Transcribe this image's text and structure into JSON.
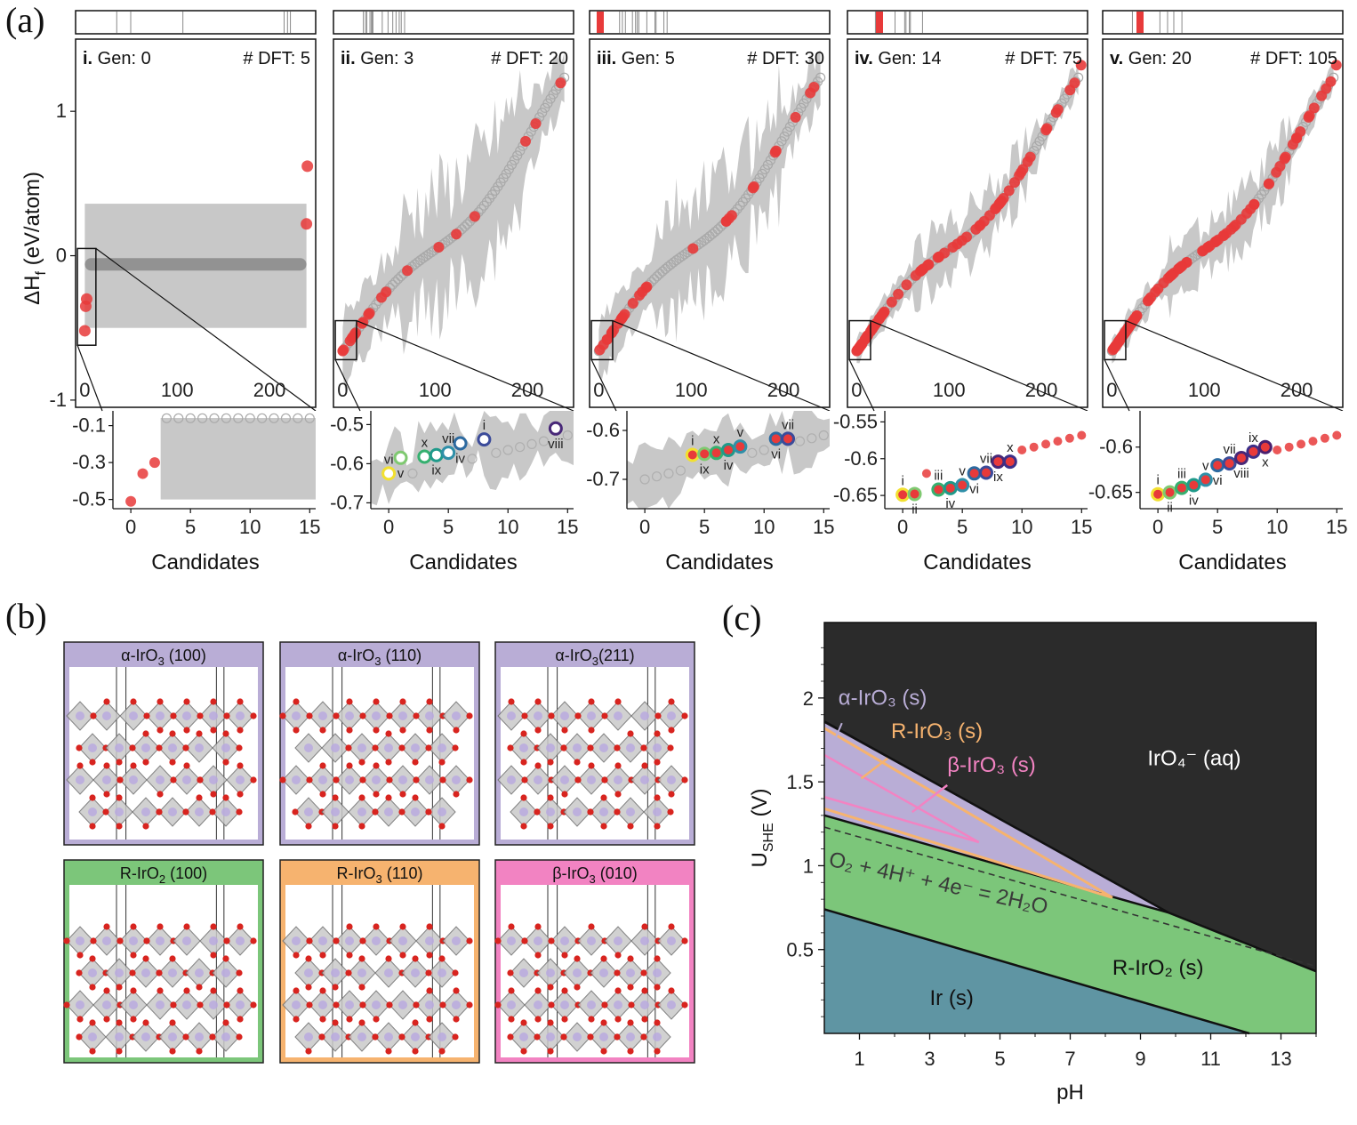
{
  "labels": {
    "a": "(a)",
    "b": "(b)",
    "c": "(c)"
  },
  "panel_a": {
    "y_axis_label": "ΔH",
    "y_axis_sub": "f",
    "y_axis_unit": " (eV/atom)",
    "x_axis_label": "Candidates",
    "main_yticks": [
      -1,
      0,
      1
    ],
    "main_xticks": [
      0,
      100,
      200
    ],
    "zoom_xticks": [
      0,
      5,
      10,
      15
    ],
    "highlight_color": "#e83a3a",
    "candidate_color": "#a9a9a9",
    "band_color": "#c8c8c8",
    "ring_colors": [
      "#f2e030",
      "#7fc971",
      "#35b06f",
      "#1f9a8a",
      "#2f8fa8",
      "#2c6aa0",
      "#3b4b9a",
      "#482878",
      "#3d2f88",
      "#4a1f6e"
    ],
    "subpanels": [
      {
        "roman": "i.",
        "gen": "Gen: 0",
        "dft": "# DFT: 5",
        "zoom_yticks": [
          -0.1,
          -0.3,
          -0.5
        ],
        "zoom_ylim": [
          -0.55,
          -0.02
        ]
      },
      {
        "roman": "ii.",
        "gen": "Gen: 3",
        "dft": "# DFT: 20",
        "zoom_yticks": [
          -0.5,
          -0.6,
          -0.7
        ],
        "zoom_ylim": [
          -0.715,
          -0.465
        ]
      },
      {
        "roman": "iii.",
        "gen": "Gen: 5",
        "dft": "# DFT: 30",
        "zoom_yticks": [
          -0.6,
          -0.7
        ],
        "zoom_ylim": [
          -0.76,
          -0.56
        ]
      },
      {
        "roman": "iv.",
        "gen": "Gen: 14",
        "dft": "# DFT: 75",
        "zoom_yticks": [
          -0.55,
          -0.6,
          -0.65
        ],
        "zoom_ylim": [
          -0.668,
          -0.535
        ]
      },
      {
        "roman": "v.",
        "gen": "Gen: 20",
        "dft": "# DFT: 105",
        "zoom_yticks": [
          -0.6,
          -0.65
        ],
        "zoom_ylim": [
          -0.668,
          -0.56
        ]
      }
    ],
    "zoom_markers": [
      [],
      [
        {
          "t": "vi",
          "x": 0,
          "y": -0.625
        },
        {
          "t": "v",
          "x": 1,
          "y": -0.585
        },
        {
          "t": "x",
          "x": 3,
          "y": -0.582
        },
        {
          "t": "ix",
          "x": 4,
          "y": -0.578
        },
        {
          "t": "vii",
          "x": 5,
          "y": -0.572
        },
        {
          "t": "iv",
          "x": 6,
          "y": -0.548
        },
        {
          "t": "i",
          "x": 8,
          "y": -0.538
        },
        {
          "t": "viii",
          "x": 14,
          "y": -0.51
        }
      ],
      [
        {
          "t": "i",
          "x": 4,
          "y": -0.65
        },
        {
          "t": "ix",
          "x": 5,
          "y": -0.648
        },
        {
          "t": "x",
          "x": 6,
          "y": -0.646
        },
        {
          "t": "iv",
          "x": 7,
          "y": -0.64
        },
        {
          "t": "v",
          "x": 8,
          "y": -0.633
        },
        {
          "t": "vi",
          "x": 11,
          "y": -0.617
        },
        {
          "t": "vii",
          "x": 12,
          "y": -0.617
        }
      ],
      [
        {
          "t": "i",
          "x": 0,
          "y": -0.649
        },
        {
          "t": "ii",
          "x": 1,
          "y": -0.648
        },
        {
          "t": "iii",
          "x": 3,
          "y": -0.642
        },
        {
          "t": "iv",
          "x": 4,
          "y": -0.64
        },
        {
          "t": "v",
          "x": 5,
          "y": -0.636
        },
        {
          "t": "vi",
          "x": 6,
          "y": -0.62
        },
        {
          "t": "vii",
          "x": 7,
          "y": -0.619
        },
        {
          "t": "ix",
          "x": 8,
          "y": -0.604
        },
        {
          "t": "x",
          "x": 9,
          "y": -0.604
        }
      ],
      [
        {
          "t": "i",
          "x": 0,
          "y": -0.652
        },
        {
          "t": "ii",
          "x": 1,
          "y": -0.65
        },
        {
          "t": "iii",
          "x": 2,
          "y": -0.645
        },
        {
          "t": "iv",
          "x": 3,
          "y": -0.642
        },
        {
          "t": "v",
          "x": 4,
          "y": -0.636
        },
        {
          "t": "vi",
          "x": 5,
          "y": -0.62
        },
        {
          "t": "vii",
          "x": 6,
          "y": -0.618
        },
        {
          "t": "viii",
          "x": 7,
          "y": -0.612
        },
        {
          "t": "ix",
          "x": 8,
          "y": -0.605
        },
        {
          "t": "x",
          "x": 9,
          "y": -0.6
        }
      ]
    ]
  },
  "panel_b": {
    "slabs": [
      {
        "name": "α-IrO",
        "sub": "3",
        "facet": " (100)",
        "color": "#b9add6"
      },
      {
        "name": "α-IrO",
        "sub": "3",
        "facet": " (110)",
        "color": "#b9add6"
      },
      {
        "name": "α-IrO",
        "sub": "3",
        "facet": "(211)",
        "color": "#b9add6"
      },
      {
        "name": "R-IrO",
        "sub": "2",
        "facet": " (100)",
        "color": "#7cc67a"
      },
      {
        "name": "R-IrO",
        "sub": "3",
        "facet": " (110)",
        "color": "#f6b36f"
      },
      {
        "name": "β-IrO",
        "sub": "3",
        "facet": " (010)",
        "color": "#f283c2"
      }
    ]
  },
  "panel_c": {
    "x_label": "pH",
    "y_label_main": "U",
    "y_label_sub": "SHE",
    "y_label_unit": " (V)",
    "xticks": [
      1,
      3,
      5,
      7,
      9,
      11,
      13
    ],
    "yticks": [
      0.5,
      1,
      1.5,
      2
    ],
    "xlim": [
      0,
      14
    ],
    "ylim": [
      0,
      2.45
    ],
    "water_line_label": "O₂ + 4H⁺ + 4e⁻ = 2H₂O",
    "regions": [
      {
        "label": "IrO₄⁻ (aq)",
        "color": "#2b2b2b",
        "text_color": "#ffffff"
      },
      {
        "label": "R-IrO₂ (s)",
        "color": "#7cc67a",
        "text_color": "#111111"
      },
      {
        "label": "Ir (s)",
        "color": "#5f95a3",
        "text_color": "#111111"
      },
      {
        "label": "α-IrO₃ (s)",
        "color": "#b9add6",
        "text_color": "#b9add6"
      },
      {
        "label": "R-IrO₃ (s)",
        "color": "#f6b36f",
        "text_color": "#f6b36f"
      },
      {
        "label": "β-IrO₃ (s)",
        "color": "#f283c2",
        "text_color": "#f283c2"
      }
    ]
  },
  "chart_data": [
    {
      "type": "scatter",
      "panel": "a.i",
      "xlabel": "Candidates",
      "ylabel": "ΔHf (eV/atom)",
      "xlim": [
        -10,
        250
      ],
      "ylim": [
        -1.05,
        1.5
      ],
      "dft_points": {
        "x": [
          0,
          1,
          2,
          240,
          241
        ],
        "y": [
          -0.52,
          -0.35,
          -0.3,
          0.22,
          0.62
        ]
      },
      "candidates_mean": -0.06,
      "zoom": {
        "xlim": [
          -1.5,
          15.5
        ],
        "ylim": [
          -0.55,
          -0.02
        ],
        "dft": {
          "x": [
            0,
            1,
            2
          ],
          "y": [
            -0.51,
            -0.36,
            -0.3
          ]
        },
        "candidates_mean": -0.06
      }
    },
    {
      "type": "scatter",
      "panel": "a.ii",
      "xlabel": "Candidates",
      "xlim": [
        -10,
        250
      ],
      "ylim": [
        -1.05,
        1.5
      ]
    },
    {
      "type": "scatter",
      "panel": "a.iii",
      "xlabel": "Candidates",
      "xlim": [
        -10,
        250
      ],
      "ylim": [
        -1.05,
        1.5
      ]
    },
    {
      "type": "scatter",
      "panel": "a.iv",
      "xlabel": "Candidates",
      "xlim": [
        -10,
        250
      ],
      "ylim": [
        -1.05,
        1.5
      ]
    },
    {
      "type": "scatter",
      "panel": "a.v",
      "xlabel": "Candidates",
      "xlim": [
        -10,
        250
      ],
      "ylim": [
        -1.05,
        1.5
      ]
    },
    {
      "type": "area",
      "panel": "c",
      "xlabel": "pH",
      "ylabel": "USHE (V)",
      "xlim": [
        0,
        14
      ],
      "ylim": [
        0,
        2.45
      ],
      "boundaries": [
        {
          "name": "Ir / R-IrO2",
          "x": [
            0,
            12.1
          ],
          "y": [
            0.74,
            0.0
          ]
        },
        {
          "name": "R-IrO2 / IrO4-",
          "x": [
            9.8,
            14
          ],
          "y": [
            0.72,
            0.37
          ]
        },
        {
          "name": "water oxidation",
          "x": [
            0,
            14
          ],
          "y": [
            1.23,
            0.4
          ]
        },
        {
          "name": "alpha-IrO3 upper",
          "x": [
            0,
            9.8
          ],
          "y": [
            1.85,
            0.72
          ]
        },
        {
          "name": "R-IrO3 line",
          "x": [
            0,
            8.2
          ],
          "y": [
            1.82,
            0.81
          ]
        }
      ]
    }
  ]
}
